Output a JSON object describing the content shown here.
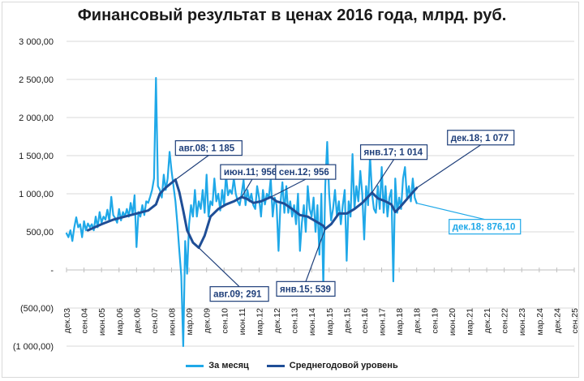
{
  "chart_data": {
    "type": "line",
    "title": "Финансовый результат в ценах 2016 года, млрд. руб.",
    "ylim": [
      -1000,
      3000
    ],
    "y_ticks": [
      {
        "value": 3000,
        "label": "3 000,00"
      },
      {
        "value": 2500,
        "label": "2 500,00"
      },
      {
        "value": 2000,
        "label": "2 000,00"
      },
      {
        "value": 1500,
        "label": "1 500,00"
      },
      {
        "value": 1000,
        "label": "1 000,00"
      },
      {
        "value": 500,
        "label": "500,00"
      },
      {
        "value": 0,
        "label": "-"
      },
      {
        "value": -500,
        "label": "(500,00)"
      },
      {
        "value": -1000,
        "label": "(1 000,00)"
      }
    ],
    "x_range_months": [
      "2003-12",
      "2025-09"
    ],
    "x_tick_labels": [
      "дек.03",
      "сен.04",
      "июн.05",
      "мар.06",
      "дек.06",
      "сен.07",
      "июн.08",
      "мар.09",
      "дек.09",
      "сен.10",
      "июн.11",
      "мар.12",
      "дек.12",
      "сен.13",
      "июн.14",
      "мар.15",
      "дек.15",
      "сен.16",
      "июн.17",
      "мар.18",
      "дек.18",
      "сен.19",
      "июн.20",
      "мар.21",
      "дек.21",
      "сен.22",
      "июн.23",
      "мар.24",
      "дек.24",
      "сен.25"
    ],
    "grid": true,
    "legend": "bottom",
    "series": [
      {
        "name": "За месяц",
        "color": "#1fa8e8",
        "points": [
          [
            "2003-12",
            480
          ],
          [
            "2004-01",
            430
          ],
          [
            "2004-02",
            520
          ],
          [
            "2004-03",
            380
          ],
          [
            "2004-04",
            560
          ],
          [
            "2004-05",
            690
          ],
          [
            "2004-06",
            560
          ],
          [
            "2004-07",
            600
          ],
          [
            "2004-08",
            430
          ],
          [
            "2004-09",
            640
          ],
          [
            "2004-10",
            520
          ],
          [
            "2004-11",
            610
          ],
          [
            "2004-12",
            560
          ],
          [
            "2005-01",
            600
          ],
          [
            "2005-02",
            520
          ],
          [
            "2005-03",
            700
          ],
          [
            "2005-04",
            560
          ],
          [
            "2005-05",
            760
          ],
          [
            "2005-06",
            620
          ],
          [
            "2005-07",
            700
          ],
          [
            "2005-08",
            660
          ],
          [
            "2005-09",
            790
          ],
          [
            "2005-10",
            640
          ],
          [
            "2005-11",
            960
          ],
          [
            "2005-12",
            720
          ],
          [
            "2006-01",
            680
          ],
          [
            "2006-02",
            620
          ],
          [
            "2006-03",
            800
          ],
          [
            "2006-04",
            650
          ],
          [
            "2006-05",
            760
          ],
          [
            "2006-06",
            700
          ],
          [
            "2006-07",
            800
          ],
          [
            "2006-08",
            700
          ],
          [
            "2006-09",
            880
          ],
          [
            "2006-10",
            730
          ],
          [
            "2006-11",
            980
          ],
          [
            "2006-12",
            300
          ],
          [
            "2007-01",
            760
          ],
          [
            "2007-02",
            700
          ],
          [
            "2007-03",
            850
          ],
          [
            "2007-04",
            720
          ],
          [
            "2007-05",
            900
          ],
          [
            "2007-06",
            880
          ],
          [
            "2007-07",
            960
          ],
          [
            "2007-08",
            1050
          ],
          [
            "2007-09",
            1200
          ],
          [
            "2007-10",
            2520
          ],
          [
            "2007-11",
            1100
          ],
          [
            "2007-12",
            1050
          ],
          [
            "2008-01",
            950
          ],
          [
            "2008-02",
            1250
          ],
          [
            "2008-03",
            1050
          ],
          [
            "2008-04",
            1200
          ],
          [
            "2008-05",
            1550
          ],
          [
            "2008-06",
            1300
          ],
          [
            "2008-07",
            1100
          ],
          [
            "2008-08",
            900
          ],
          [
            "2008-09",
            600
          ],
          [
            "2008-10",
            250
          ],
          [
            "2008-11",
            -80
          ],
          [
            "2008-12",
            -1000
          ],
          [
            "2009-01",
            380
          ],
          [
            "2009-02",
            -50
          ],
          [
            "2009-03",
            600
          ],
          [
            "2009-04",
            850
          ],
          [
            "2009-05",
            700
          ],
          [
            "2009-06",
            1050
          ],
          [
            "2009-07",
            700
          ],
          [
            "2009-08",
            900
          ],
          [
            "2009-09",
            800
          ],
          [
            "2009-10",
            1050
          ],
          [
            "2009-11",
            750
          ],
          [
            "2009-12",
            1250
          ],
          [
            "2010-01",
            700
          ],
          [
            "2010-02",
            900
          ],
          [
            "2010-03",
            850
          ],
          [
            "2010-04",
            1200
          ],
          [
            "2010-05",
            900
          ],
          [
            "2010-06",
            1000
          ],
          [
            "2010-07",
            780
          ],
          [
            "2010-08",
            1050
          ],
          [
            "2010-09",
            850
          ],
          [
            "2010-10",
            1250
          ],
          [
            "2010-11",
            980
          ],
          [
            "2010-12",
            1050
          ],
          [
            "2011-01",
            1000
          ],
          [
            "2011-02",
            1200
          ],
          [
            "2011-03",
            1000
          ],
          [
            "2011-04",
            900
          ],
          [
            "2011-05",
            850
          ],
          [
            "2011-06",
            1000
          ],
          [
            "2011-07",
            1180
          ],
          [
            "2011-08",
            850
          ],
          [
            "2011-09",
            1050
          ],
          [
            "2011-10",
            900
          ],
          [
            "2011-11",
            1000
          ],
          [
            "2011-12",
            850
          ],
          [
            "2012-01",
            800
          ],
          [
            "2012-02",
            1100
          ],
          [
            "2012-03",
            950
          ],
          [
            "2012-04",
            700
          ],
          [
            "2012-05",
            1050
          ],
          [
            "2012-06",
            860
          ],
          [
            "2012-07",
            1000
          ],
          [
            "2012-08",
            950
          ],
          [
            "2012-09",
            1200
          ],
          [
            "2012-10",
            700
          ],
          [
            "2012-11",
            950
          ],
          [
            "2012-12",
            850
          ],
          [
            "2013-01",
            250
          ],
          [
            "2013-02",
            880
          ],
          [
            "2013-03",
            1150
          ],
          [
            "2013-04",
            750
          ],
          [
            "2013-05",
            1100
          ],
          [
            "2013-06",
            750
          ],
          [
            "2013-07",
            900
          ],
          [
            "2013-08",
            700
          ],
          [
            "2013-09",
            850
          ],
          [
            "2013-10",
            600
          ],
          [
            "2013-11",
            1000
          ],
          [
            "2013-12",
            250
          ],
          [
            "2014-01",
            620
          ],
          [
            "2014-02",
            850
          ],
          [
            "2014-03",
            500
          ],
          [
            "2014-04",
            1100
          ],
          [
            "2014-05",
            800
          ],
          [
            "2014-06",
            700
          ],
          [
            "2014-07",
            950
          ],
          [
            "2014-08",
            500
          ],
          [
            "2014-09",
            850
          ],
          [
            "2014-10",
            200
          ],
          [
            "2014-11",
            1000
          ],
          [
            "2014-12",
            -200
          ],
          [
            "2015-01",
            1100
          ],
          [
            "2015-02",
            1680
          ],
          [
            "2015-03",
            1000
          ],
          [
            "2015-04",
            650
          ],
          [
            "2015-05",
            800
          ],
          [
            "2015-06",
            1050
          ],
          [
            "2015-07",
            700
          ],
          [
            "2015-08",
            900
          ],
          [
            "2015-09",
            600
          ],
          [
            "2015-10",
            850
          ],
          [
            "2015-11",
            1050
          ],
          [
            "2015-12",
            120
          ],
          [
            "2016-01",
            900
          ],
          [
            "2016-02",
            700
          ],
          [
            "2016-03",
            1520
          ],
          [
            "2016-04",
            800
          ],
          [
            "2016-05",
            1100
          ],
          [
            "2016-06",
            900
          ],
          [
            "2016-07",
            1300
          ],
          [
            "2016-08",
            1000
          ],
          [
            "2016-09",
            400
          ],
          [
            "2016-10",
            1100
          ],
          [
            "2016-11",
            850
          ],
          [
            "2016-12",
            1500
          ],
          [
            "2017-01",
            1014
          ],
          [
            "2017-02",
            800
          ],
          [
            "2017-03",
            750
          ],
          [
            "2017-04",
            1100
          ],
          [
            "2017-05",
            800
          ],
          [
            "2017-06",
            1350
          ],
          [
            "2017-07",
            750
          ],
          [
            "2017-08",
            1100
          ],
          [
            "2017-09",
            700
          ],
          [
            "2017-10",
            950
          ],
          [
            "2017-11",
            1050
          ],
          [
            "2017-12",
            -150
          ],
          [
            "2018-01",
            1200
          ],
          [
            "2018-02",
            750
          ],
          [
            "2018-03",
            950
          ],
          [
            "2018-04",
            800
          ],
          [
            "2018-05",
            1200
          ],
          [
            "2018-06",
            1350
          ],
          [
            "2018-07",
            950
          ],
          [
            "2018-08",
            1100
          ],
          [
            "2018-09",
            900
          ],
          [
            "2018-10",
            1200
          ],
          [
            "2018-11",
            950
          ],
          [
            "2018-12",
            876.1
          ]
        ]
      },
      {
        "name": "Среднегодовой уровень",
        "color": "#1f4e96",
        "points": [
          [
            "2004-11",
            520
          ],
          [
            "2005-06",
            600
          ],
          [
            "2005-12",
            660
          ],
          [
            "2006-06",
            700
          ],
          [
            "2006-12",
            740
          ],
          [
            "2007-06",
            780
          ],
          [
            "2007-10",
            860
          ],
          [
            "2007-12",
            1000
          ],
          [
            "2008-03",
            1080
          ],
          [
            "2008-08",
            1185
          ],
          [
            "2008-10",
            1020
          ],
          [
            "2008-12",
            780
          ],
          [
            "2009-02",
            520
          ],
          [
            "2009-05",
            360
          ],
          [
            "2009-08",
            291
          ],
          [
            "2009-11",
            450
          ],
          [
            "2010-02",
            700
          ],
          [
            "2010-06",
            800
          ],
          [
            "2010-10",
            860
          ],
          [
            "2011-02",
            900
          ],
          [
            "2011-06",
            956
          ],
          [
            "2011-09",
            930
          ],
          [
            "2011-12",
            880
          ],
          [
            "2012-04",
            900
          ],
          [
            "2012-09",
            956
          ],
          [
            "2012-12",
            900
          ],
          [
            "2013-04",
            870
          ],
          [
            "2013-08",
            800
          ],
          [
            "2013-12",
            720
          ],
          [
            "2014-04",
            700
          ],
          [
            "2014-08",
            640
          ],
          [
            "2014-12",
            580
          ],
          [
            "2015-01",
            539
          ],
          [
            "2015-04",
            600
          ],
          [
            "2015-08",
            740
          ],
          [
            "2015-12",
            740
          ],
          [
            "2016-04",
            800
          ],
          [
            "2016-08",
            880
          ],
          [
            "2016-11",
            960
          ],
          [
            "2017-01",
            1014
          ],
          [
            "2017-04",
            940
          ],
          [
            "2017-08",
            900
          ],
          [
            "2017-11",
            860
          ],
          [
            "2018-01",
            760
          ],
          [
            "2018-04",
            840
          ],
          [
            "2018-08",
            960
          ],
          [
            "2018-12",
            1077
          ]
        ]
      }
    ],
    "annotations": [
      {
        "text": "авг.08; 1 185",
        "month": "2008-08",
        "value": 1185,
        "series": "Среднегодовой уровень"
      },
      {
        "text": "июн.11; 956",
        "month": "2011-06",
        "value": 956,
        "series": "Среднегодовой уровень"
      },
      {
        "text": "сен.12; 956",
        "month": "2012-09",
        "value": 956,
        "series": "Среднегодовой уровень"
      },
      {
        "text": "янв.17; 1 014",
        "month": "2017-01",
        "value": 1014,
        "series": "Среднегодовой уровень"
      },
      {
        "text": "дек.18; 1 077",
        "month": "2018-12",
        "value": 1077,
        "series": "Среднегодовой уровень"
      },
      {
        "text": "авг.09; 291",
        "month": "2009-08",
        "value": 291,
        "series": "Среднегодовой уровень"
      },
      {
        "text": "янв.15; 539",
        "month": "2015-01",
        "value": 539,
        "series": "Среднегодовой уровень"
      },
      {
        "text": "дек.18;  876,10",
        "month": "2018-12",
        "value": 876.1,
        "series": "За месяц"
      }
    ]
  }
}
